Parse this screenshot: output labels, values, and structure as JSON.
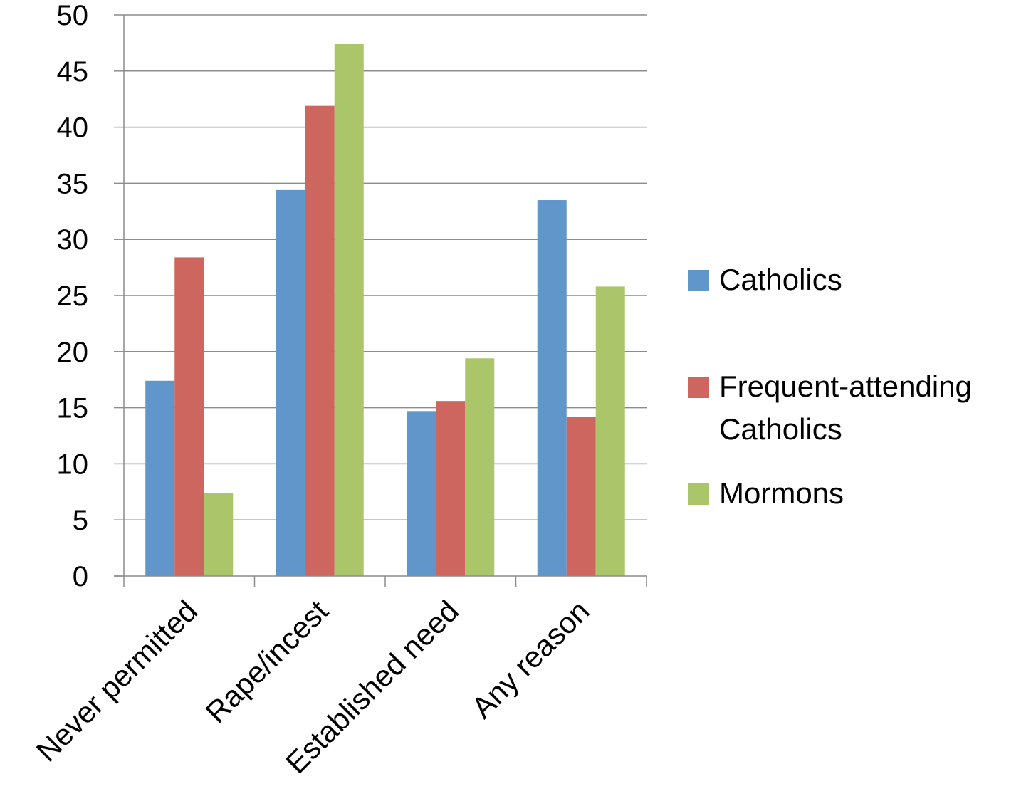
{
  "chart_data": {
    "type": "bar",
    "categories": [
      "Never permitted",
      "Rape/incest",
      "Established need",
      "Any reason"
    ],
    "series": [
      {
        "name": "Catholics",
        "color": "#6096CA",
        "values": [
          17.4,
          34.4,
          14.7,
          33.5
        ]
      },
      {
        "name": "Frequent-attending Catholics",
        "color": "#CD665F",
        "values": [
          28.4,
          41.9,
          15.6,
          14.2
        ]
      },
      {
        "name": "Mormons",
        "color": "#ABC56B",
        "values": [
          7.4,
          47.4,
          19.4,
          25.8
        ]
      }
    ],
    "ylim": [
      0,
      50
    ],
    "yticks": [
      "0",
      "5",
      "10",
      "15",
      "20",
      "25",
      "30",
      "35",
      "40",
      "45",
      "50"
    ],
    "grid": true,
    "legend_position": "right"
  }
}
